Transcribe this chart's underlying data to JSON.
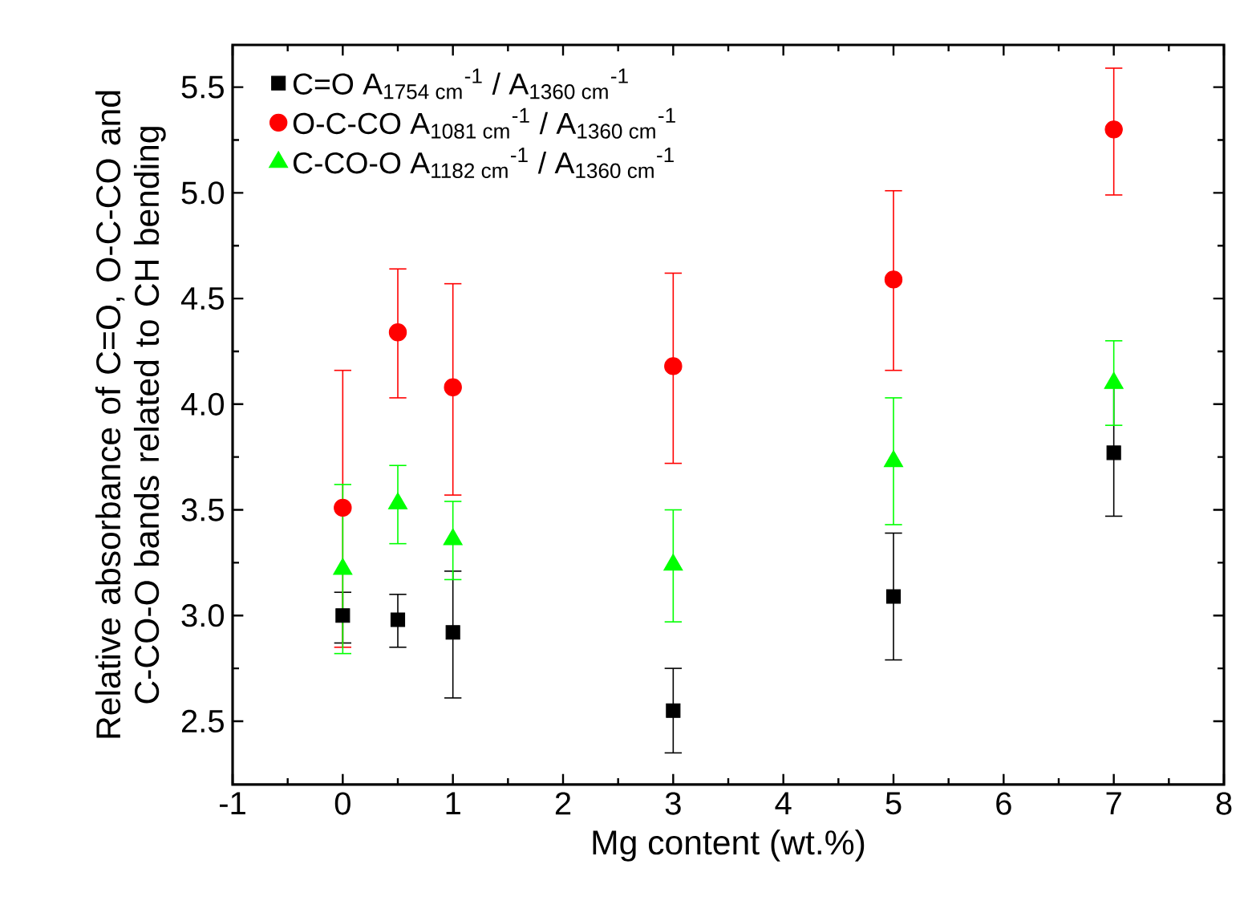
{
  "chart_data": {
    "type": "scatter",
    "xlabel": "Mg content (wt.%)",
    "ylabel": "Relative absorbance of C=O, O-C-CO and C-CO-O bands related to CH bending",
    "xlim": [
      -1,
      8
    ],
    "xticks": [
      -1,
      0,
      1,
      2,
      3,
      4,
      5,
      6,
      7,
      8
    ],
    "ylim": [
      2.2,
      5.7
    ],
    "yticks": [
      2.5,
      {
        "value": 3.0,
        "label": "3.0"
      },
      3.5,
      {
        "value": 4.0,
        "label": "4.0"
      },
      4.5,
      {
        "value": 5.0,
        "label": "5.0"
      },
      5.5
    ],
    "x": [
      0,
      0.5,
      1,
      3,
      5,
      7
    ],
    "legend": "top left",
    "series": [
      {
        "name": "C=O A$_{1754 cm}$$^{-1}$ / A$_{1360 cm}$$^{-1}$",
        "color": "#000000",
        "marker": "square",
        "values": [
          3.0,
          2.98,
          2.92,
          2.55,
          3.09,
          3.77
        ],
        "errors": [
          [
            2.87,
            3.11
          ],
          [
            2.85,
            3.1
          ],
          [
            2.61,
            3.21
          ],
          [
            2.35,
            2.75
          ],
          [
            2.79,
            3.39
          ],
          [
            3.47,
            4.08
          ]
        ]
      },
      {
        "name": "O-C-CO A$_{1081 cm}$$^{-1}$ / A$_{1360 cm}$$^{-1}$",
        "color": "#ff0000",
        "marker": "circle",
        "values": [
          3.51,
          4.34,
          4.08,
          4.18,
          4.59,
          5.3
        ],
        "errors": [
          [
            2.85,
            4.16
          ],
          [
            4.03,
            4.64
          ],
          [
            3.57,
            4.57
          ],
          [
            3.72,
            4.62
          ],
          [
            4.16,
            5.01
          ],
          [
            4.99,
            5.59
          ]
        ]
      },
      {
        "name": "C-CO-O A$_{1182 cm}$$^{-1}$ / A$_{1360 cm}$$^{-1}$",
        "color": "#00ff00",
        "marker": "triangle",
        "values": [
          3.22,
          3.53,
          3.36,
          3.24,
          3.73,
          4.1
        ],
        "errors": [
          [
            2.82,
            3.62
          ],
          [
            3.34,
            3.71
          ],
          [
            3.17,
            3.54
          ],
          [
            2.97,
            3.5
          ],
          [
            3.43,
            4.03
          ],
          [
            3.9,
            4.3
          ]
        ]
      }
    ]
  }
}
